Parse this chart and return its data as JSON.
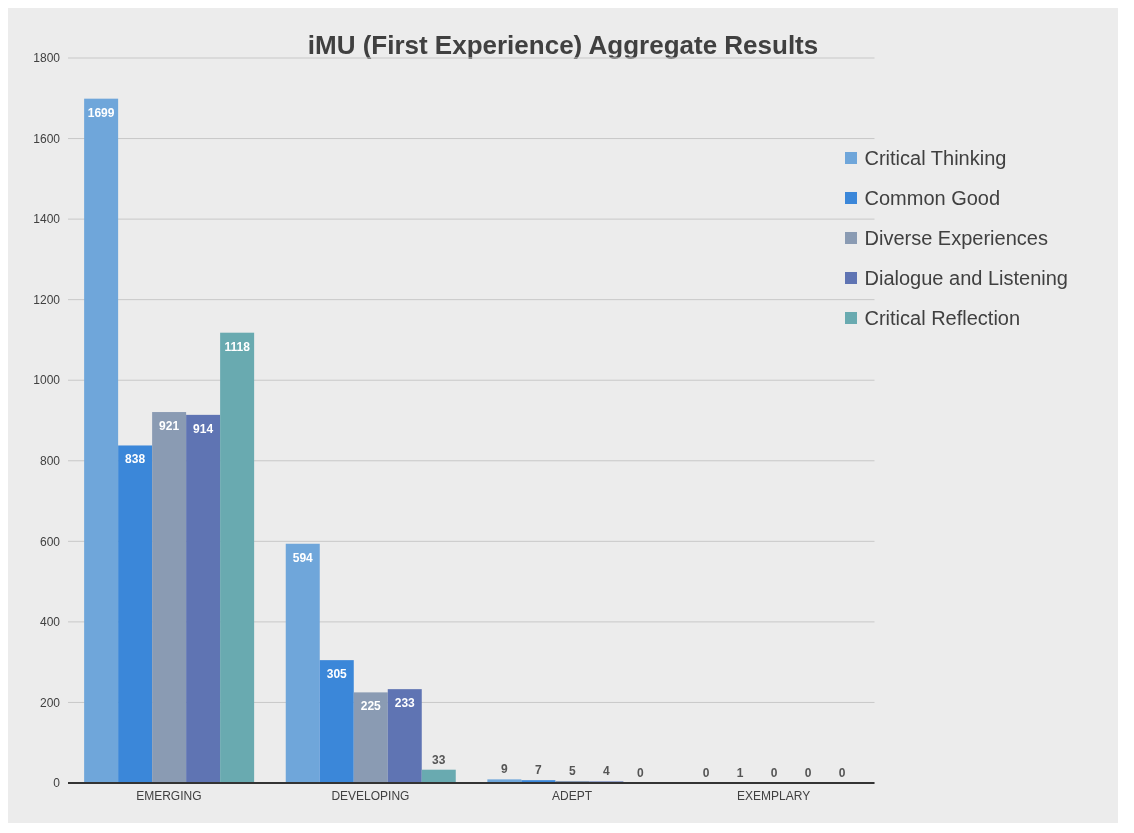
{
  "chart_data": {
    "type": "bar",
    "title": "iMU (First Experience) Aggregate Results",
    "categories": [
      "EMERGING",
      "DEVELOPING",
      "ADEPT",
      "EXEMPLARY"
    ],
    "series": [
      {
        "name": "Critical Thinking",
        "color": "#6fa6da",
        "values": [
          1699,
          594,
          9,
          0
        ]
      },
      {
        "name": "Common Good",
        "color": "#3b87d9",
        "values": [
          838,
          305,
          7,
          1
        ]
      },
      {
        "name": "Diverse Experiences",
        "color": "#8a9bb3",
        "values": [
          921,
          225,
          5,
          0
        ]
      },
      {
        "name": "Dialogue and Listening",
        "color": "#5f74b3",
        "values": [
          914,
          233,
          4,
          0
        ]
      },
      {
        "name": "Critical Reflection",
        "color": "#69aab0",
        "values": [
          1118,
          33,
          0,
          0
        ]
      }
    ],
    "ylim": [
      0,
      1800
    ],
    "yticks": [
      0,
      200,
      400,
      600,
      800,
      1000,
      1200,
      1400,
      1600,
      1800
    ],
    "grid": "y",
    "legend": "top right",
    "data_labels": true
  }
}
